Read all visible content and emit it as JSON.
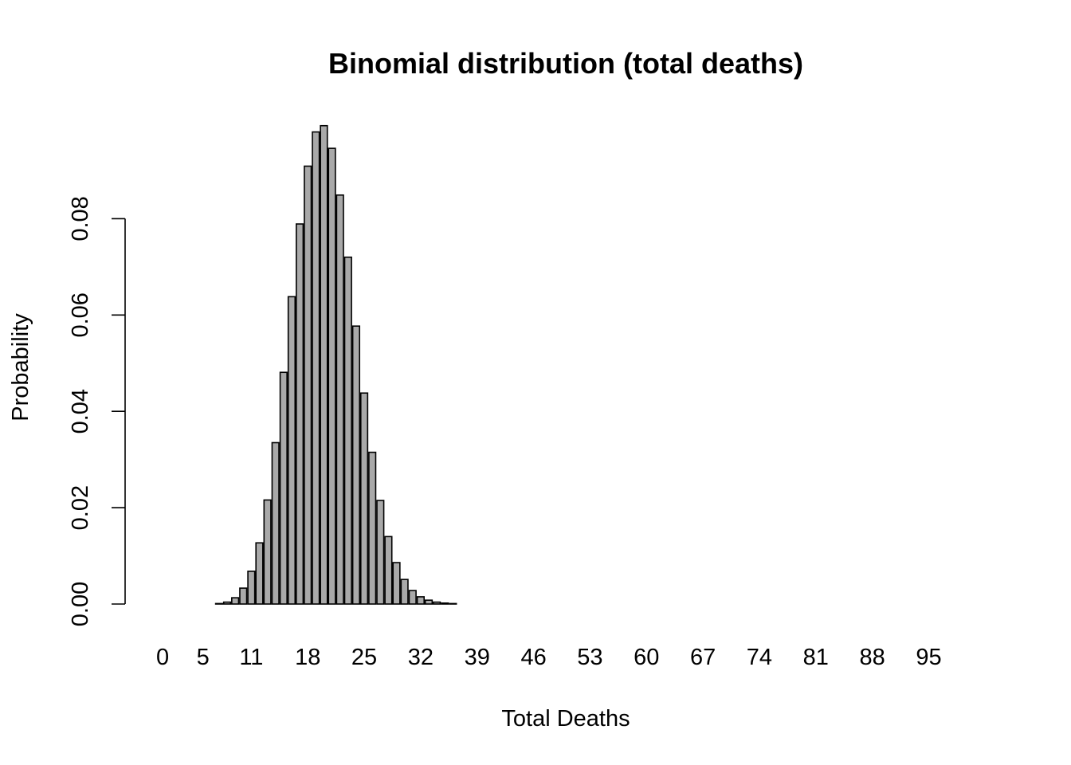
{
  "chart_data": {
    "type": "bar",
    "title": "Binomial distribution (total deaths)",
    "xlabel": "Total Deaths",
    "ylabel": "Probability",
    "categories": [
      0,
      1,
      2,
      3,
      4,
      5,
      6,
      7,
      8,
      9,
      10,
      11,
      12,
      13,
      14,
      15,
      16,
      17,
      18,
      19,
      20,
      21,
      22,
      23,
      24,
      25,
      26,
      27,
      28,
      29,
      30,
      31,
      32,
      33,
      34,
      35,
      36,
      37,
      38,
      39,
      40,
      41,
      42,
      43,
      44,
      45,
      46,
      47,
      48,
      49,
      50,
      51,
      52,
      53,
      54,
      55,
      56,
      57,
      58,
      59,
      60,
      61,
      62,
      63,
      64,
      65,
      66,
      67,
      68,
      69,
      70,
      71,
      72,
      73,
      74,
      75,
      76,
      77,
      78,
      79,
      80,
      81,
      82,
      83,
      84,
      85,
      86,
      87,
      88,
      89,
      90,
      91,
      92,
      93,
      94,
      95,
      96,
      97,
      98,
      99,
      100
    ],
    "values": [
      0,
      0,
      0,
      0,
      0,
      0,
      0,
      0.0001,
      0.0004,
      0.0013,
      0.0033,
      0.0068,
      0.0127,
      0.0216,
      0.0335,
      0.0481,
      0.0638,
      0.0789,
      0.0909,
      0.098,
      0.0993,
      0.0946,
      0.0849,
      0.072,
      0.0577,
      0.0438,
      0.0315,
      0.0215,
      0.014,
      0.0086,
      0.0051,
      0.0028,
      0.0015,
      0.0008,
      0.0004,
      0.0002,
      0.0001,
      0,
      0,
      0,
      0,
      0,
      0,
      0,
      0,
      0,
      0,
      0,
      0,
      0,
      0,
      0,
      0,
      0,
      0,
      0,
      0,
      0,
      0,
      0,
      0,
      0,
      0,
      0,
      0,
      0,
      0,
      0,
      0,
      0,
      0,
      0,
      0,
      0,
      0,
      0,
      0,
      0,
      0,
      0,
      0,
      0,
      0,
      0,
      0,
      0,
      0,
      0,
      0,
      0,
      0,
      0,
      0,
      0,
      0,
      0,
      0,
      0,
      0,
      0,
      0
    ],
    "x_tick_labels": [
      "0",
      "5",
      "11",
      "18",
      "25",
      "32",
      "39",
      "46",
      "53",
      "60",
      "67",
      "74",
      "81",
      "88",
      "95"
    ],
    "x_tick_positions": [
      0,
      5,
      11,
      18,
      25,
      32,
      39,
      46,
      53,
      60,
      67,
      74,
      81,
      88,
      95
    ],
    "y_ticks": [
      0,
      0.02,
      0.04,
      0.06,
      0.08
    ],
    "y_tick_labels": [
      "0.00",
      "0.02",
      "0.04",
      "0.06",
      "0.08"
    ],
    "ylim": [
      0,
      0.1
    ],
    "grid": false,
    "colors": {
      "bar_fill": "#a9a9a9",
      "bar_stroke": "#000000",
      "text": "#000000"
    }
  }
}
